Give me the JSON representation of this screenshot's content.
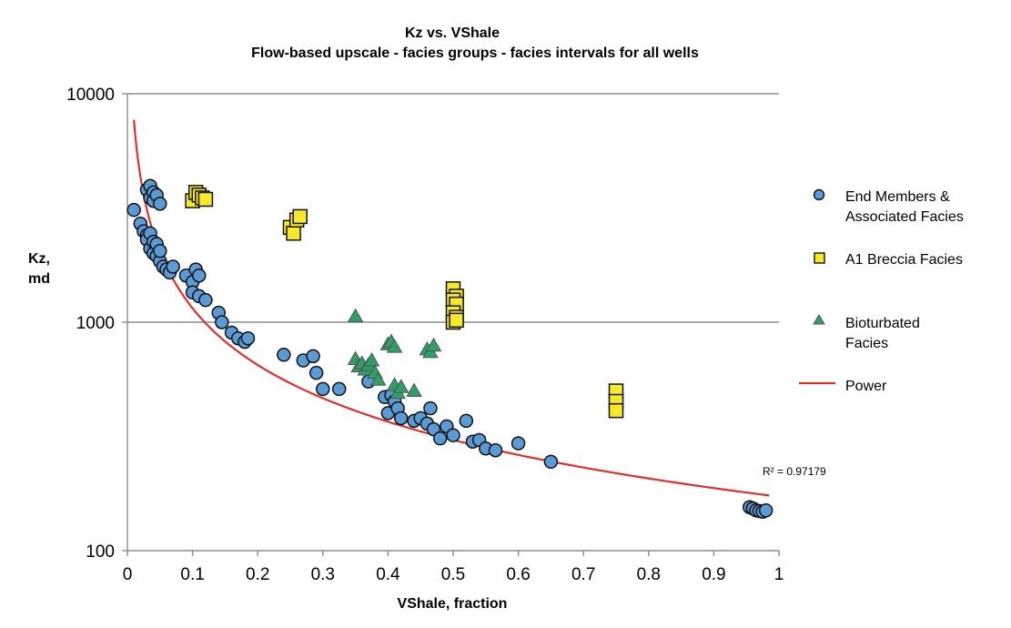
{
  "chart_data": {
    "type": "scatter",
    "title": "Kz vs. VShale",
    "subtitle": "Flow-based upscale - facies groups - facies intervals for all wells",
    "xlabel": "VShale, fraction",
    "ylabel_lines": [
      "Kz,",
      "md"
    ],
    "xlim": [
      0,
      1
    ],
    "ylim": [
      100,
      10000
    ],
    "yscale": "log",
    "x_ticks": [
      0,
      0.1,
      0.2,
      0.3,
      0.4,
      0.5,
      0.6,
      0.7,
      0.8,
      0.9,
      1
    ],
    "x_tick_labels": [
      "0",
      "0.1",
      "0.2",
      "0.3",
      "0.4",
      "0.5",
      "0.6",
      "0.7",
      "0.8",
      "0.9",
      "1"
    ],
    "y_ticks": [
      100,
      1000,
      10000
    ],
    "y_tick_labels": [
      "100",
      "1000",
      "10000"
    ],
    "gridlines": "horizontal major",
    "legend_position": "right",
    "colors": {
      "end_members": "#5b9bd5",
      "breccia": "#f5e92a",
      "bioturbated": "#2e9e6a",
      "power": "#e0302a",
      "grid": "#8c8c8c",
      "axis": "#8c8c8c"
    },
    "series": [
      {
        "name": "End Members & Associated Facies",
        "marker": "circle",
        "x": [
          0.01,
          0.02,
          0.025,
          0.03,
          0.03,
          0.035,
          0.035,
          0.04,
          0.04,
          0.045,
          0.05,
          0.03,
          0.035,
          0.04,
          0.045,
          0.05,
          0.055,
          0.06,
          0.065,
          0.07,
          0.035,
          0.04,
          0.045,
          0.05,
          0.09,
          0.1,
          0.105,
          0.11,
          0.1,
          0.11,
          0.12,
          0.14,
          0.145,
          0.16,
          0.17,
          0.18,
          0.185,
          0.24,
          0.27,
          0.285,
          0.29,
          0.3,
          0.325,
          0.37,
          0.395,
          0.4,
          0.405,
          0.41,
          0.415,
          0.42,
          0.44,
          0.45,
          0.46,
          0.465,
          0.47,
          0.48,
          0.49,
          0.5,
          0.52,
          0.53,
          0.54,
          0.55,
          0.565,
          0.6,
          0.65,
          0.955,
          0.96,
          0.965,
          0.97,
          0.975,
          0.98
        ],
        "y": [
          3100,
          2700,
          2500,
          2400,
          3800,
          3500,
          3950,
          3700,
          3400,
          3600,
          3300,
          2300,
          2100,
          2000,
          1950,
          1850,
          1750,
          1700,
          1650,
          1750,
          2450,
          2250,
          2200,
          2050,
          1600,
          1500,
          1700,
          1600,
          1350,
          1300,
          1250,
          1100,
          1000,
          900,
          850,
          820,
          850,
          720,
          680,
          710,
          600,
          510,
          510,
          550,
          470,
          400,
          480,
          450,
          420,
          380,
          370,
          380,
          360,
          420,
          340,
          310,
          350,
          320,
          370,
          300,
          305,
          280,
          275,
          295,
          245,
          155,
          153,
          150,
          149,
          148,
          150
        ]
      },
      {
        "name": "A1 Breccia Facies",
        "marker": "square",
        "x": [
          0.1,
          0.105,
          0.11,
          0.115,
          0.12,
          0.25,
          0.255,
          0.26,
          0.265,
          0.5,
          0.505,
          0.5,
          0.505,
          0.5,
          0.505,
          0.5,
          0.505,
          0.75,
          0.75,
          0.75
        ],
        "y": [
          3400,
          3700,
          3600,
          3500,
          3450,
          2600,
          2450,
          2800,
          2900,
          1400,
          1300,
          1250,
          1200,
          1100,
          1050,
          1000,
          1020,
          500,
          450,
          410
        ]
      },
      {
        "name": "Bioturbated Facies",
        "marker": "triangle",
        "x": [
          0.35,
          0.35,
          0.355,
          0.36,
          0.365,
          0.37,
          0.375,
          0.38,
          0.385,
          0.4,
          0.405,
          0.41,
          0.41,
          0.415,
          0.42,
          0.44,
          0.46,
          0.465,
          0.47
        ],
        "y": [
          1060,
          690,
          640,
          660,
          620,
          650,
          680,
          600,
          560,
          800,
          820,
          530,
          780,
          490,
          520,
          500,
          760,
          740,
          790
        ]
      }
    ],
    "trendline": {
      "name": "Power",
      "type": "power",
      "coefficient": 172.2,
      "exponent": -0.825,
      "x_range": [
        0.01,
        0.985
      ],
      "r_squared_label": "R² = 0.97179"
    },
    "legend_labels": {
      "end_members": [
        "End Members &",
        "Associated Facies"
      ],
      "breccia": [
        "A1 Breccia Facies"
      ],
      "bioturbated": [
        "Bioturbated",
        "Facies"
      ],
      "power": [
        "Power"
      ]
    }
  }
}
